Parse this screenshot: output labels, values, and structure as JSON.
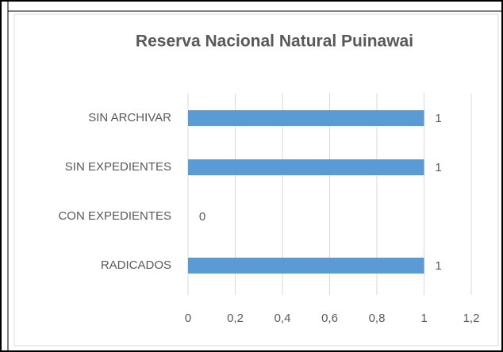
{
  "chart_data": {
    "type": "hbar",
    "title": "Reserva Nacional Natural Puinawai",
    "categories": [
      "SIN ARCHIVAR",
      "SIN EXPEDIENTES",
      "CON EXPEDIENTES",
      "RADICADOS"
    ],
    "values": [
      1,
      1,
      0,
      1
    ],
    "color": "#5b9bd5",
    "xlim": [
      0,
      1.2
    ],
    "xticks": [
      0,
      {
        "value": 0.2,
        "label": "0,2"
      },
      {
        "value": 0.4,
        "label": "0,4"
      },
      {
        "value": 0.6,
        "label": "0,6"
      },
      {
        "value": 0.8,
        "label": "0,8"
      },
      1,
      {
        "value": 1.2,
        "label": "1,2"
      }
    ],
    "grid": true
  }
}
